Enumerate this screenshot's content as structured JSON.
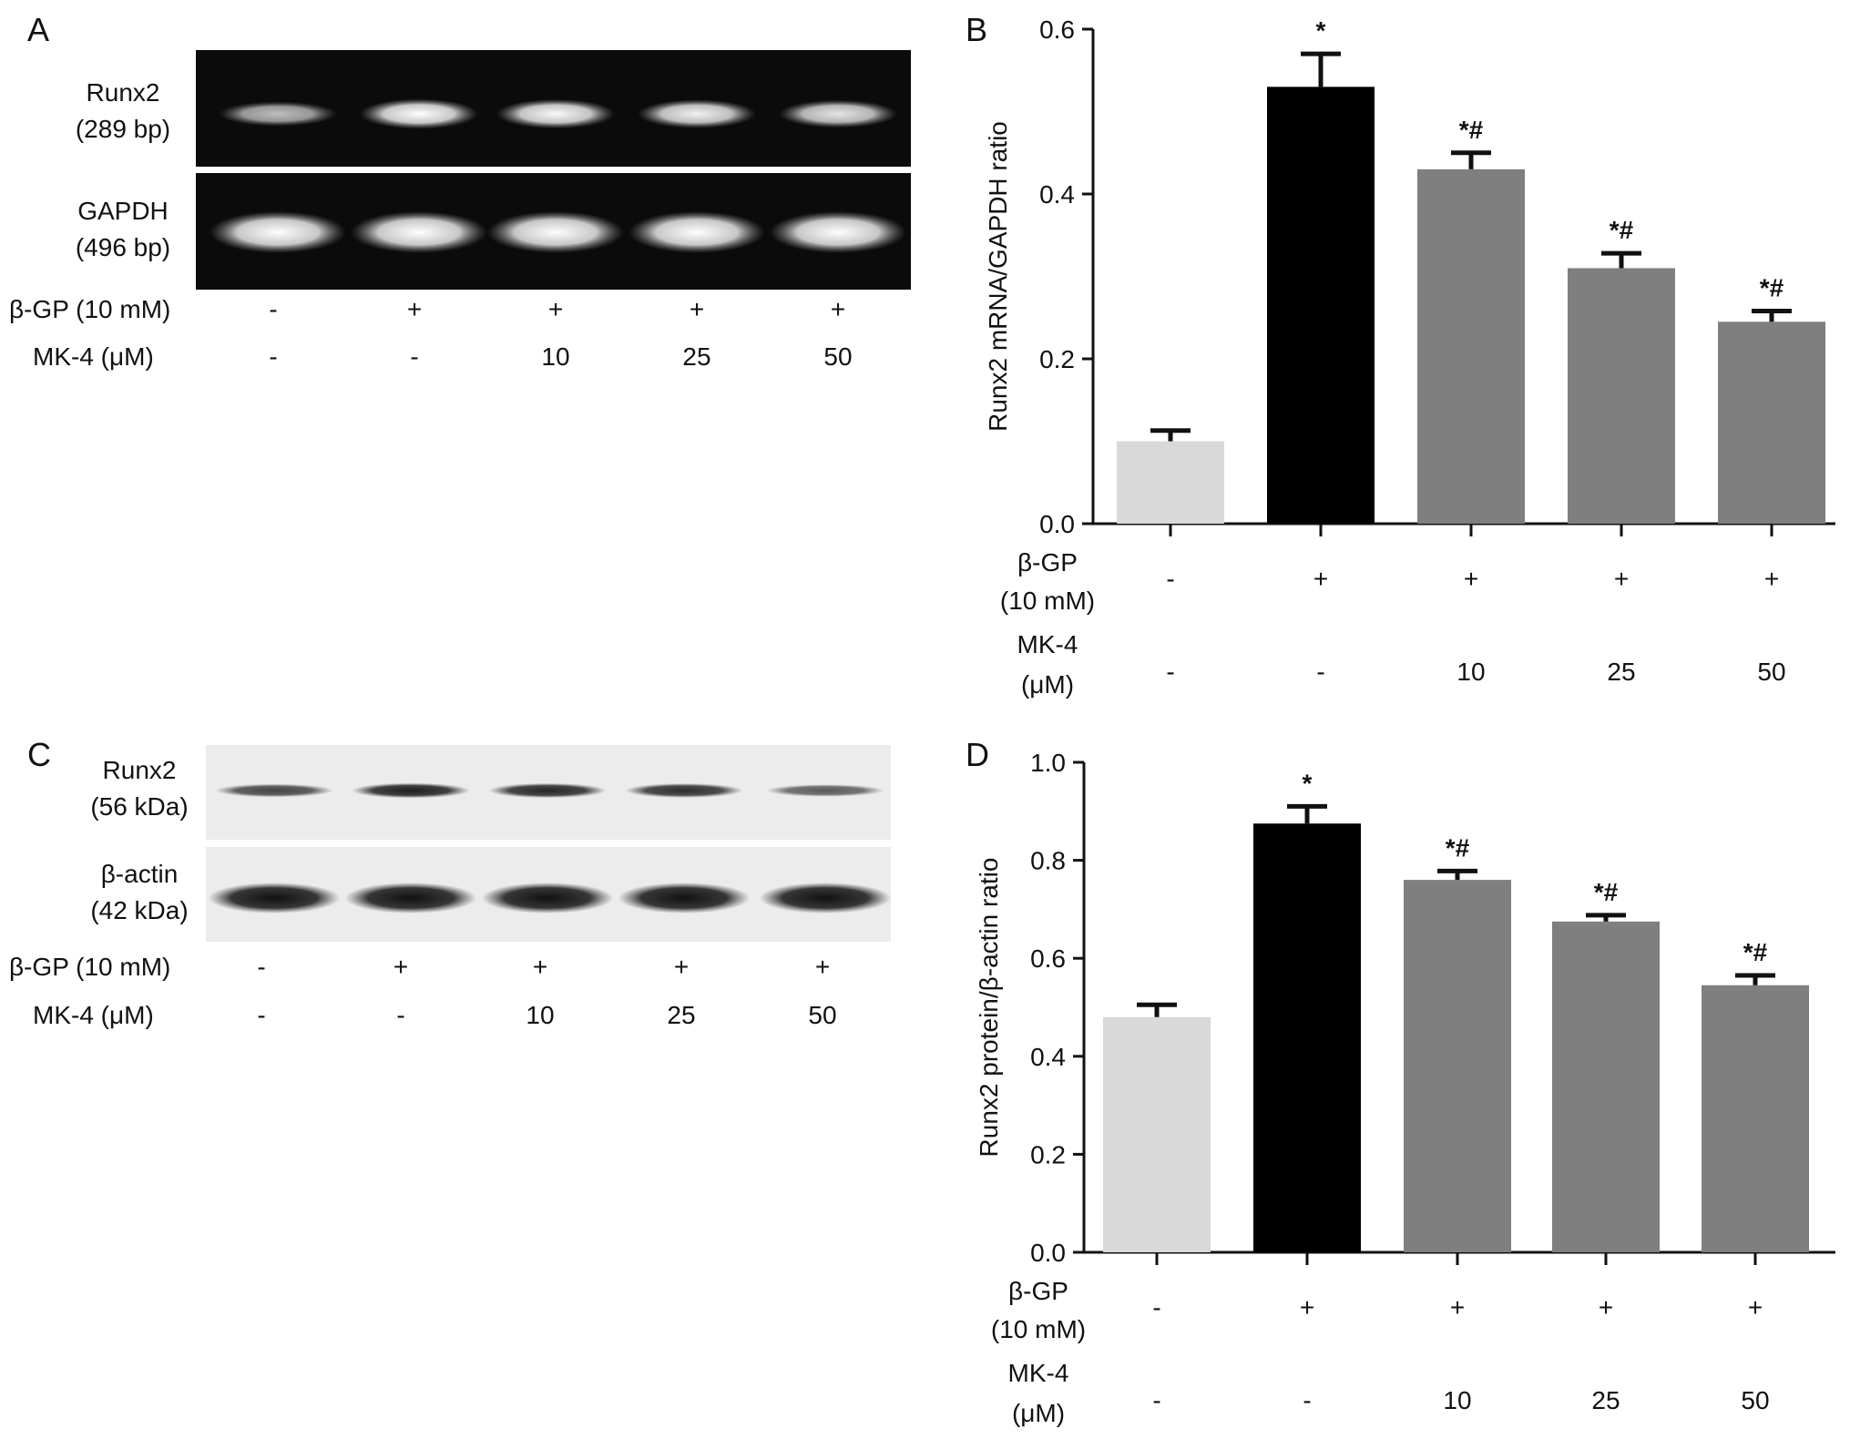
{
  "panels": {
    "A": {
      "letter": "A",
      "bands": [
        {
          "name_line1": "Runx2",
          "name_line2": "(289 bp)",
          "intensities": [
            0.55,
            0.95,
            0.9,
            0.85,
            0.78
          ]
        },
        {
          "name_line1": "GAPDH",
          "name_line2": "(496 bp)",
          "intensities": [
            1.0,
            1.0,
            1.0,
            1.0,
            1.0
          ]
        }
      ],
      "treatment_rows": [
        {
          "label": "β-GP (10 mM)",
          "values": [
            "-",
            "+",
            "+",
            "+",
            "+"
          ]
        },
        {
          "label": "MK-4 (μM)",
          "values": [
            "-",
            "-",
            "10",
            "25",
            "50"
          ]
        }
      ],
      "background": "#0b0b0b"
    },
    "C": {
      "letter": "C",
      "bands": [
        {
          "name_line1": "Runx2",
          "name_line2": "(56 kDa)",
          "intensities": [
            0.6,
            0.85,
            0.8,
            0.75,
            0.45
          ]
        },
        {
          "name_line1": "β-actin",
          "name_line2": "(42 kDa)",
          "intensities": [
            1.0,
            1.0,
            1.0,
            1.0,
            1.0
          ]
        }
      ],
      "treatment_rows": [
        {
          "label": "β-GP (10 mM)",
          "values": [
            "-",
            "+",
            "+",
            "+",
            "+"
          ]
        },
        {
          "label": "MK-4 (μM)",
          "values": [
            "-",
            "-",
            "10",
            "25",
            "50"
          ]
        }
      ],
      "background": "#ececec"
    }
  },
  "chart_data": [
    {
      "panel": "B",
      "type": "bar",
      "ylabel": "Runx2 mRNA/GAPDH ratio",
      "ylim": [
        0,
        0.6
      ],
      "yticks": [
        "0.0",
        "0.2",
        "0.4",
        "0.6"
      ],
      "ytick_values": [
        0,
        0.2,
        0.4,
        0.6
      ],
      "values": [
        0.1,
        0.53,
        0.43,
        0.31,
        0.245
      ],
      "errors": [
        0.013,
        0.04,
        0.02,
        0.018,
        0.013
      ],
      "significance": [
        "",
        "*",
        "*#",
        "*#",
        "*#"
      ],
      "bar_colors": [
        "#d9d9d9",
        "#000000",
        "#7f7f7f",
        "#7f7f7f",
        "#7f7f7f"
      ],
      "row1_label_line1": "β-GP",
      "row1_label_line2": "(10 mM)",
      "row1_values": [
        "-",
        "+",
        "+",
        "+",
        "+"
      ],
      "row2_label_line1": "MK-4",
      "row2_label_line2": "(μM)",
      "row2_values": [
        "-",
        "-",
        "10",
        "25",
        "50"
      ]
    },
    {
      "panel": "D",
      "type": "bar",
      "ylabel": "Runx2 protein/β-actin ratio",
      "ylim": [
        0,
        1.0
      ],
      "yticks": [
        "0.0",
        "0.2",
        "0.4",
        "0.6",
        "0.8",
        "1.0"
      ],
      "ytick_values": [
        0,
        0.2,
        0.4,
        0.6,
        0.8,
        1.0
      ],
      "values": [
        0.48,
        0.875,
        0.76,
        0.675,
        0.545
      ],
      "errors": [
        0.025,
        0.035,
        0.018,
        0.013,
        0.02
      ],
      "significance": [
        "",
        "*",
        "*#",
        "*#",
        "*#"
      ],
      "bar_colors": [
        "#d9d9d9",
        "#000000",
        "#7f7f7f",
        "#7f7f7f",
        "#7f7f7f"
      ],
      "row1_label_line1": "β-GP",
      "row1_label_line2": "(10 mM)",
      "row1_values": [
        "-",
        "+",
        "+",
        "+",
        "+"
      ],
      "row2_label_line1": "MK-4",
      "row2_label_line2": "(μM)",
      "row2_values": [
        "-",
        "-",
        "10",
        "25",
        "50"
      ]
    }
  ]
}
